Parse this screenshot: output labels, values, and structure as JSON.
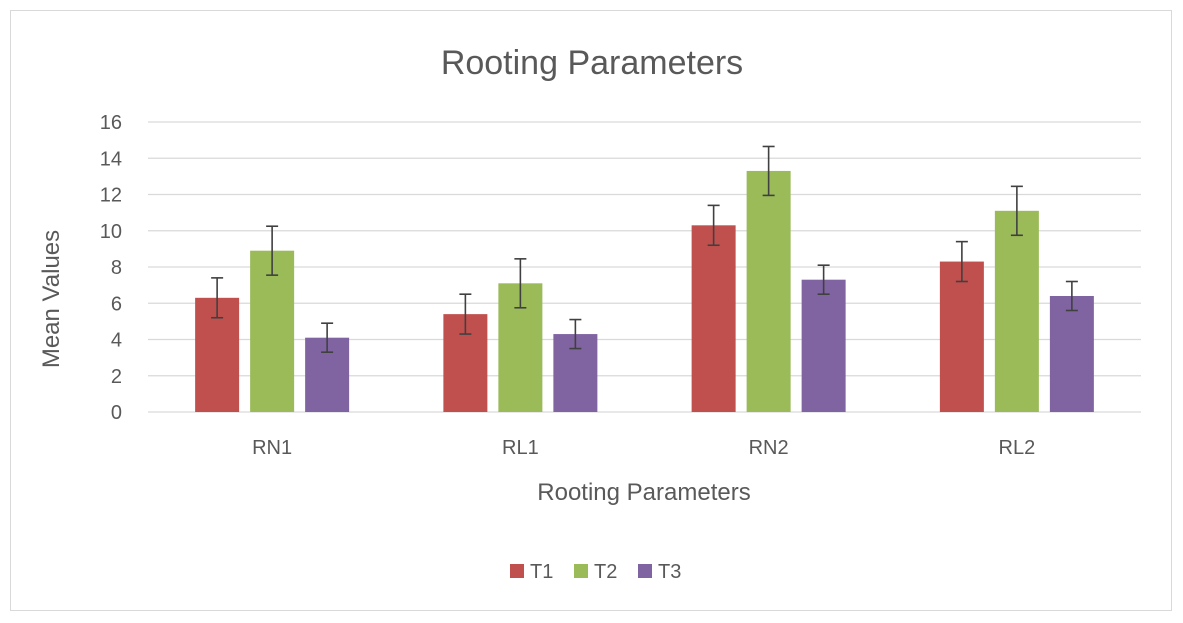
{
  "chart_data": {
    "type": "bar",
    "title": "Rooting Parameters",
    "xlabel": "Rooting Parameters",
    "ylabel": "Mean Values",
    "categories": [
      "RN1",
      "RL1",
      "RN2",
      "RL2"
    ],
    "series": [
      {
        "name": "T1",
        "color": "#c0504d",
        "values": [
          6.3,
          5.4,
          10.3,
          8.3
        ],
        "errors": [
          1.1,
          1.1,
          1.1,
          1.1
        ]
      },
      {
        "name": "T2",
        "color": "#9bbb59",
        "values": [
          8.9,
          7.1,
          13.3,
          11.1
        ],
        "errors": [
          1.35,
          1.35,
          1.35,
          1.35
        ]
      },
      {
        "name": "T3",
        "color": "#8064a2",
        "values": [
          4.1,
          4.3,
          7.3,
          6.4
        ],
        "errors": [
          0.8,
          0.8,
          0.8,
          0.8
        ]
      }
    ],
    "ylim": [
      0,
      16
    ],
    "yticks": [
      "0",
      "2",
      "4",
      "6",
      "8",
      "10",
      "12",
      "14",
      "16"
    ],
    "grid": true,
    "legend_position": "bottom",
    "error_bar_color": "#404040",
    "gridline_color": "#d9d9d9"
  }
}
